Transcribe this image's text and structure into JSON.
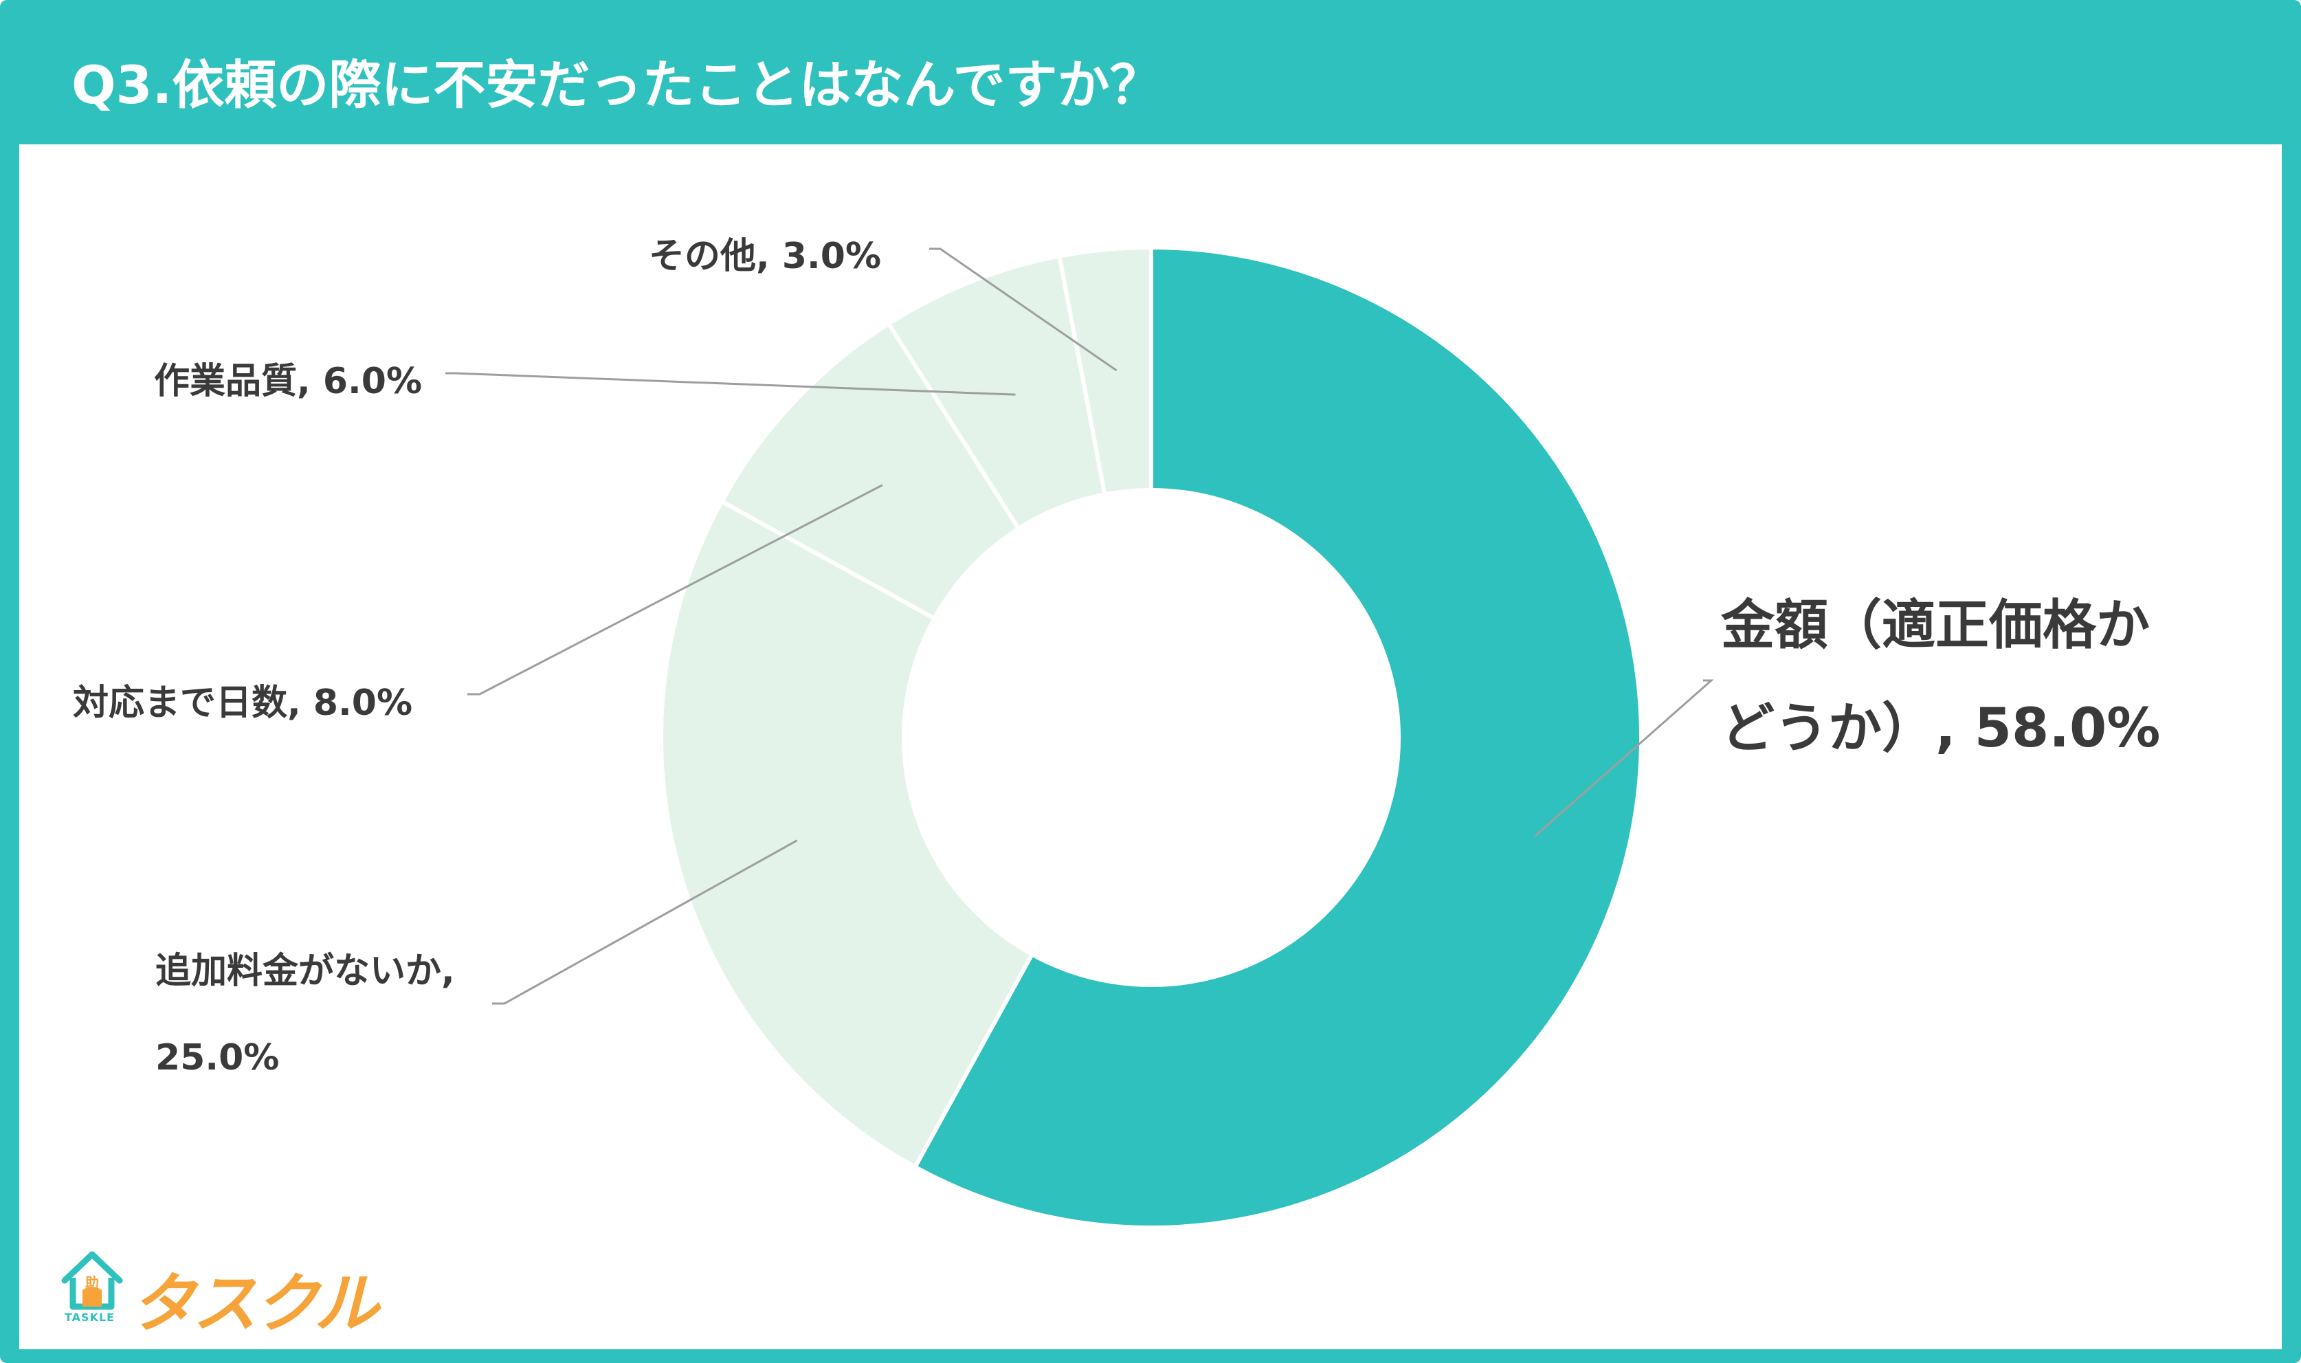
{
  "header": {
    "title": "Q3.依頼の際に不安だったことはなんですか？"
  },
  "colors": {
    "accent": "#2ec1bd",
    "muted_slice": "#e3f3ea",
    "logo_orange": "#f6a33a"
  },
  "chart_data": {
    "type": "pie",
    "variant": "donut",
    "title": "Q3.依頼の際に不安だったことはなんですか？",
    "unit": "%",
    "categories": [
      "金額（適正価格かどうか）",
      "追加料金がないか",
      "対応まで日数",
      "作業品質",
      "その他"
    ],
    "values": [
      58.0,
      25.0,
      8.0,
      6.0,
      3.0
    ],
    "labels": [
      {
        "line1": "金額（適正価格か",
        "line2": "どうか）, 58.0%"
      },
      {
        "line1": "追加料金がないか,",
        "line2": "25.0%"
      },
      {
        "text": "対応まで日数, 8.0%"
      },
      {
        "text": "作業品質, 6.0%"
      },
      {
        "text": "その他, 3.0%"
      }
    ]
  },
  "logo": {
    "name": "タスクル",
    "sub": "TASKLE",
    "badge": "助"
  }
}
